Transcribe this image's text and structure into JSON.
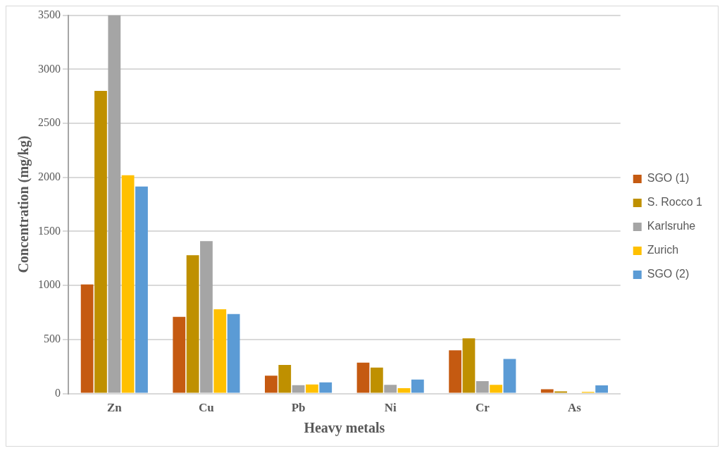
{
  "chart_data": {
    "type": "bar",
    "xlabel": "Heavy metals",
    "ylabel": "Concentration (mg/kg)",
    "categories": [
      "Zn",
      "Cu",
      "Pb",
      "Ni",
      "Cr",
      "As"
    ],
    "series": [
      {
        "name": "SGO (1)",
        "color": "#c55a11",
        "values": [
          1010,
          710,
          165,
          285,
          400,
          40
        ]
      },
      {
        "name": "S. Rocco 1",
        "color": "#bf9000",
        "values": [
          2800,
          1280,
          265,
          240,
          510,
          20
        ]
      },
      {
        "name": "Karlsruhe",
        "color": "#a5a5a5",
        "values": [
          3500,
          1410,
          77,
          80,
          115,
          null
        ]
      },
      {
        "name": "Zurich",
        "color": "#ffc000",
        "values": [
          2020,
          780,
          84,
          50,
          80,
          15
        ]
      },
      {
        "name": "SGO (2)",
        "color": "#5b9bd5",
        "values": [
          1915,
          735,
          103,
          130,
          320,
          75
        ]
      }
    ],
    "ylim": [
      0,
      3500
    ],
    "yticks": [
      0,
      500,
      1000,
      1500,
      2000,
      2500,
      3000,
      3500
    ],
    "grid": "y",
    "legend": "right"
  }
}
